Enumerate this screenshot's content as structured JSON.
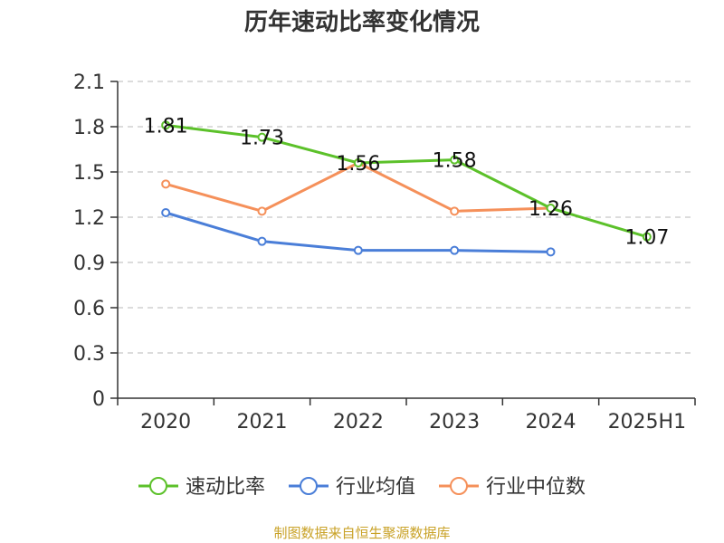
{
  "chart_data": {
    "type": "line",
    "title": "历年速动比率变化情况",
    "categories": [
      "2020",
      "2021",
      "2022",
      "2023",
      "2024",
      "2025H1"
    ],
    "ylim": [
      0,
      2.1
    ],
    "yticks": [
      "0",
      "0.3",
      "0.6",
      "0.9",
      "1.2",
      "1.5",
      "1.8",
      "2.1"
    ],
    "grid": true,
    "legend_position": "bottom",
    "series": [
      {
        "name": "速动比率",
        "color": "#5cc12a",
        "values": [
          1.81,
          1.73,
          1.56,
          1.58,
          1.26,
          1.07
        ],
        "show_labels": true
      },
      {
        "name": "行业均值",
        "color": "#4a7ed8",
        "values": [
          1.23,
          1.04,
          0.98,
          0.98,
          0.97,
          null
        ],
        "show_labels": false
      },
      {
        "name": "行业中位数",
        "color": "#f5905a",
        "values": [
          1.42,
          1.24,
          1.56,
          1.24,
          1.26,
          null
        ],
        "show_labels": false
      }
    ]
  },
  "source": "制图数据来自恒生聚源数据库"
}
